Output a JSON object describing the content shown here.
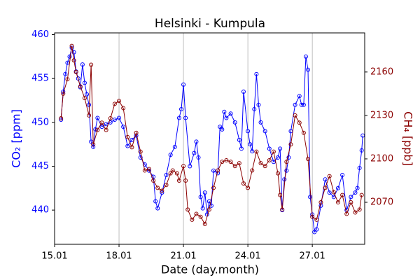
{
  "chart_data": {
    "type": "line",
    "title": "Helsinki - Kumpula",
    "x_label": "Date (day.month)",
    "y_label": "CO₂ [ppm]",
    "y2_label": "CH₄ [ppb]",
    "xlim": [
      15,
      29.44
    ],
    "xticks": [
      {
        "value": 15,
        "label": "15.01"
      },
      {
        "value": 18,
        "label": "18.01"
      },
      {
        "value": 21,
        "label": "21.01"
      },
      {
        "value": 24,
        "label": "24.01"
      },
      {
        "value": 27,
        "label": "27.01"
      }
    ],
    "ylim": [
      436.1,
      460.2
    ],
    "yticks": [
      440,
      445,
      450,
      455,
      460
    ],
    "y2lim": [
      2041,
      2187
    ],
    "y2ticks": [
      2070,
      2100,
      2130,
      2160
    ],
    "grid": true,
    "series": [
      {
        "name": "CO₂",
        "color": "#0000ff",
        "x": [
          15.3,
          15.4,
          15.5,
          15.6,
          15.7,
          15.8,
          15.9,
          16.0,
          16.1,
          16.2,
          16.3,
          16.4,
          16.5,
          16.6,
          16.7,
          16.8,
          16.9,
          17.0,
          17.2,
          17.4,
          17.6,
          17.8,
          18.0,
          18.2,
          18.4,
          18.6,
          18.8,
          19.0,
          19.2,
          19.4,
          19.6,
          19.7,
          19.8,
          20.0,
          20.2,
          20.4,
          20.6,
          20.8,
          20.9,
          21.0,
          21.1,
          21.3,
          21.5,
          21.6,
          21.7,
          21.8,
          21.9,
          22.0,
          22.1,
          22.2,
          22.3,
          22.4,
          22.6,
          22.7,
          22.8,
          22.9,
          23.0,
          23.2,
          23.4,
          23.6,
          23.7,
          23.8,
          24.0,
          24.1,
          24.2,
          24.3,
          24.4,
          24.5,
          24.6,
          24.8,
          25.0,
          25.2,
          25.4,
          25.5,
          25.6,
          25.7,
          25.8,
          25.9,
          26.0,
          26.2,
          26.4,
          26.5,
          26.6,
          26.7,
          26.8,
          26.9,
          27.0,
          27.1,
          27.2,
          27.4,
          27.6,
          27.8,
          28.0,
          28.2,
          28.4,
          28.6,
          28.8,
          29.0,
          29.1,
          29.2,
          29.3,
          29.35
        ],
        "values": [
          450.3,
          453.5,
          455.5,
          456.8,
          457.5,
          458.5,
          458.0,
          455.8,
          455.0,
          454.0,
          456.6,
          454.5,
          453.2,
          452.0,
          447.8,
          447.2,
          449.2,
          450.5,
          449.5,
          449.8,
          450.0,
          450.3,
          450.5,
          449.5,
          447.3,
          448.0,
          448.5,
          446.0,
          445.2,
          444.5,
          443.8,
          441.0,
          440.2,
          442.0,
          444.0,
          446.3,
          447.2,
          450.5,
          451.5,
          454.3,
          450.5,
          445.0,
          446.5,
          447.8,
          446.0,
          441.5,
          440.2,
          442.0,
          439.5,
          441.0,
          440.5,
          444.5,
          444.2,
          449.5,
          449.2,
          451.2,
          450.5,
          451.0,
          450.0,
          448.0,
          447.0,
          453.5,
          449.0,
          447.5,
          446.7,
          451.5,
          455.5,
          452.0,
          450.0,
          449.0,
          447.0,
          445.5,
          446.0,
          447.0,
          440.0,
          443.5,
          444.5,
          446.0,
          449.0,
          452.0,
          453.0,
          452.0,
          452.0,
          457.5,
          456.0,
          441.5,
          439.5,
          437.5,
          437.8,
          440.5,
          443.5,
          442.0,
          441.5,
          442.5,
          444.0,
          440.0,
          441.5,
          442.0,
          442.5,
          444.8,
          446.8,
          448.5
        ]
      },
      {
        "name": "CH₄",
        "color": "#8b0000",
        "axis": "y2",
        "x": [
          15.3,
          15.4,
          15.6,
          15.8,
          15.9,
          16.0,
          16.2,
          16.4,
          16.6,
          16.7,
          16.8,
          17.0,
          17.2,
          17.4,
          17.6,
          17.8,
          18.0,
          18.2,
          18.4,
          18.6,
          18.8,
          19.0,
          19.2,
          19.4,
          19.6,
          19.8,
          20.0,
          20.2,
          20.4,
          20.5,
          20.7,
          20.8,
          21.0,
          21.1,
          21.2,
          21.4,
          21.6,
          21.8,
          22.0,
          22.2,
          22.4,
          22.6,
          22.8,
          23.0,
          23.2,
          23.4,
          23.6,
          23.8,
          24.0,
          24.2,
          24.4,
          24.6,
          24.8,
          25.0,
          25.2,
          25.4,
          25.5,
          25.6,
          25.8,
          26.0,
          26.2,
          26.4,
          26.6,
          26.8,
          27.0,
          27.2,
          27.4,
          27.6,
          27.8,
          28.0,
          28.2,
          28.4,
          28.6,
          28.8,
          29.0,
          29.2,
          29.3
        ],
        "values": [
          2128,
          2145,
          2155,
          2178,
          2168,
          2160,
          2150,
          2142,
          2130,
          2165,
          2110,
          2120,
          2125,
          2120,
          2128,
          2138,
          2140,
          2135,
          2115,
          2108,
          2118,
          2105,
          2092,
          2093,
          2085,
          2080,
          2078,
          2082,
          2090,
          2092,
          2090,
          2085,
          2095,
          2085,
          2065,
          2058,
          2062,
          2060,
          2055,
          2065,
          2080,
          2092,
          2098,
          2099,
          2098,
          2095,
          2097,
          2083,
          2080,
          2092,
          2105,
          2097,
          2095,
          2099,
          2105,
          2090,
          2075,
          2065,
          2098,
          2110,
          2130,
          2125,
          2118,
          2100,
          2060,
          2058,
          2070,
          2080,
          2088,
          2077,
          2070,
          2075,
          2062,
          2070,
          2063,
          2065,
          2075
        ]
      }
    ]
  }
}
